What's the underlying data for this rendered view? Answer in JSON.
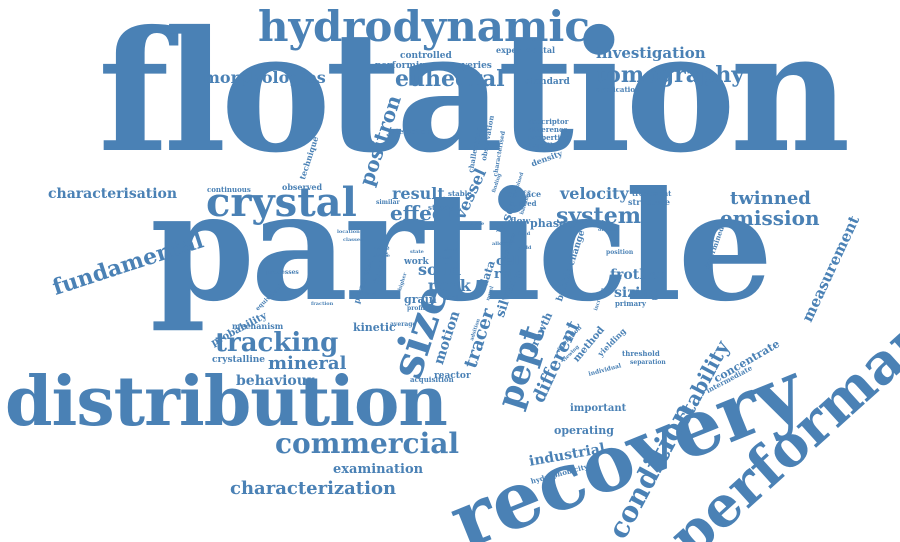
{
  "word_cloud": {
    "color": "#4a81b5",
    "words": [
      "flotation",
      "particle",
      "distribution",
      "recovery",
      "performance",
      "hydrodynamic",
      "crystal",
      "size",
      "tomography",
      "pept",
      "commercial",
      "condition",
      "tracking",
      "fundamental",
      "stability",
      "different",
      "euhedral",
      "morphologies",
      "system",
      "emission",
      "positron",
      "mineral",
      "twinned",
      "characterization",
      "characterisation",
      "measurement",
      "investigation",
      "effect",
      "velocity",
      "behaviour",
      "result",
      "motion",
      "tracer",
      "vessel",
      "solid",
      "peak",
      "frother",
      "industrial",
      "examination",
      "concentrate",
      "sizing",
      "cell",
      "rate",
      "silver",
      "data",
      "laser",
      "phases",
      "grain",
      "probability",
      "operating",
      "important",
      "controlled",
      "performing",
      "recoveries",
      "experimental",
      "standard",
      "application",
      "technique",
      "interaction",
      "challenging",
      "observation",
      "descriptor",
      "difference",
      "properties",
      "impeller",
      "density",
      "continuous",
      "observed",
      "stable",
      "surface",
      "treatment",
      "structure",
      "steady",
      "stirred",
      "similar",
      "characterised",
      "mechanism",
      "crystalline",
      "kinetic",
      "average",
      "reactor",
      "acquisition",
      "hydrophobicity",
      "growth",
      "method",
      "yielding",
      "threshold",
      "separation",
      "intermediate",
      "determined",
      "primary",
      "bubble change",
      "flow",
      "work",
      "melt",
      "cape",
      "location",
      "classes",
      "processes",
      "equivalent",
      "parameter",
      "function",
      "fraction",
      "utilized",
      "profile",
      "single",
      "state",
      "fresh",
      "higher",
      "position",
      "allow",
      "official",
      "individual",
      "increase",
      "adsition",
      "sized",
      "novel",
      "finding",
      "tank",
      "yield",
      "field",
      "operation",
      "viewing",
      "combined",
      "hardness",
      "efficiency",
      "scale"
    ]
  }
}
